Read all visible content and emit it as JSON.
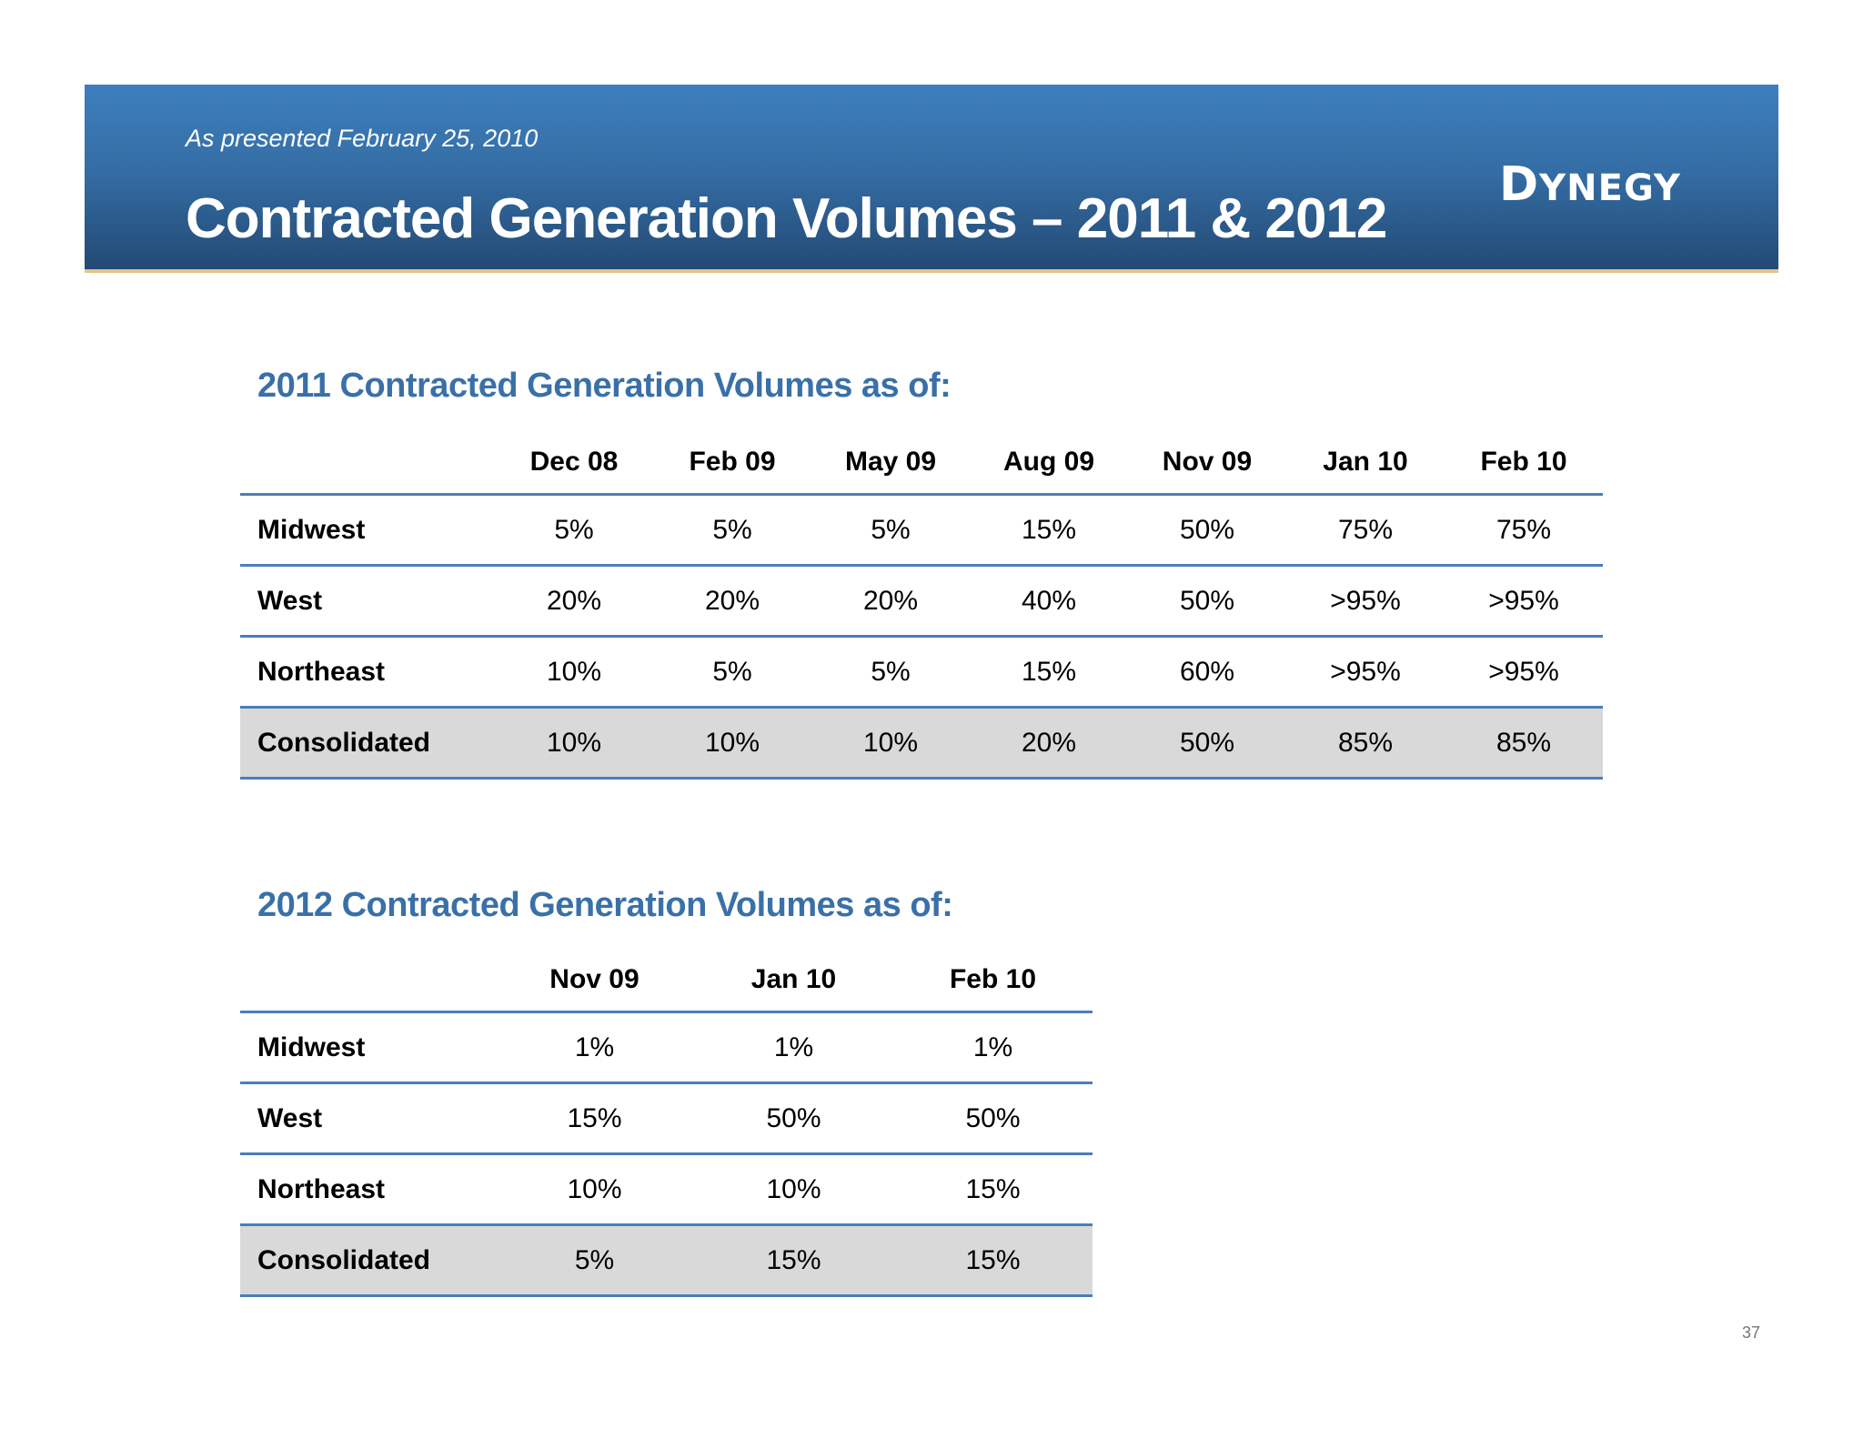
{
  "header": {
    "subtitle": "As presented February 25, 2010",
    "title": "Contracted Generation Volumes – 2011 & 2012",
    "logo_text": "DYNEGY",
    "background_color": "#2f5f92"
  },
  "table_2011": {
    "heading": "2011 Contracted Generation Volumes as of:",
    "columns": [
      "Dec 08",
      "Feb 09",
      "May 09",
      "Aug 09",
      "Nov 09",
      "Jan 10",
      "Feb 10"
    ],
    "rows": [
      {
        "label": "Midwest",
        "values": [
          "5%",
          "5%",
          "5%",
          "15%",
          "50%",
          "75%",
          "75%"
        ]
      },
      {
        "label": "West",
        "values": [
          "20%",
          "20%",
          "20%",
          "40%",
          "50%",
          ">95%",
          ">95%"
        ]
      },
      {
        "label": "Northeast",
        "values": [
          "10%",
          "5%",
          "5%",
          "15%",
          "60%",
          ">95%",
          ">95%"
        ]
      },
      {
        "label": "Consolidated",
        "values": [
          "10%",
          "10%",
          "10%",
          "20%",
          "50%",
          "85%",
          "85%"
        ]
      }
    ]
  },
  "table_2012": {
    "heading": "2012 Contracted Generation Volumes as of:",
    "columns": [
      "Nov 09",
      "Jan 10",
      "Feb 10"
    ],
    "rows": [
      {
        "label": "Midwest",
        "values": [
          "1%",
          "1%",
          "1%"
        ]
      },
      {
        "label": "West",
        "values": [
          "15%",
          "50%",
          "50%"
        ]
      },
      {
        "label": "Northeast",
        "values": [
          "10%",
          "10%",
          "15%"
        ]
      },
      {
        "label": "Consolidated",
        "values": [
          "5%",
          "15%",
          "15%"
        ]
      }
    ]
  },
  "page_number": "37"
}
